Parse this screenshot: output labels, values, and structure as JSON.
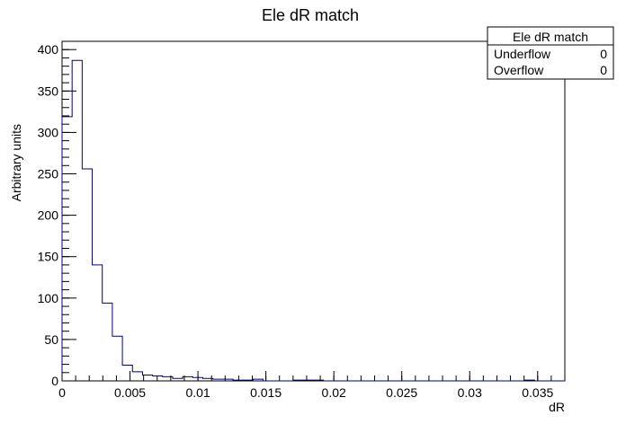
{
  "chart_data": {
    "type": "histogram",
    "title": "Ele dR match",
    "xlabel": "dR",
    "ylabel": "Arbitrary units",
    "xlim": [
      0,
      0.037
    ],
    "ylim": [
      0,
      410
    ],
    "bin_width": 0.00074,
    "x_ticks": [
      0,
      0.005,
      0.01,
      0.015,
      0.02,
      0.025,
      0.03,
      0.035
    ],
    "x_tick_labels": [
      "0",
      "0.005",
      "0.01",
      "0.015",
      "0.02",
      "0.025",
      "0.03",
      "0.035"
    ],
    "y_ticks": [
      0,
      50,
      100,
      150,
      200,
      250,
      300,
      350,
      400
    ],
    "y_tick_labels": [
      "0",
      "50",
      "100",
      "150",
      "200",
      "250",
      "300",
      "350",
      "400"
    ],
    "values": [
      319,
      387,
      256,
      140,
      94,
      54,
      19,
      11,
      7,
      6,
      5,
      3,
      5,
      4,
      3,
      2,
      2,
      1,
      1,
      2,
      0,
      0,
      0,
      1,
      1,
      1,
      0,
      0,
      0,
      0,
      0,
      0,
      0,
      0,
      0,
      0,
      0,
      0,
      0,
      0,
      0,
      0,
      0,
      0,
      0,
      0,
      1,
      0,
      0,
      0
    ],
    "line_color": "#000080",
    "grid": false,
    "legend_position": "top-right",
    "stats_box": {
      "title": "Ele dR match",
      "rows": [
        {
          "label": "Underflow",
          "value": "0"
        },
        {
          "label": "Overflow",
          "value": "0"
        }
      ]
    }
  }
}
